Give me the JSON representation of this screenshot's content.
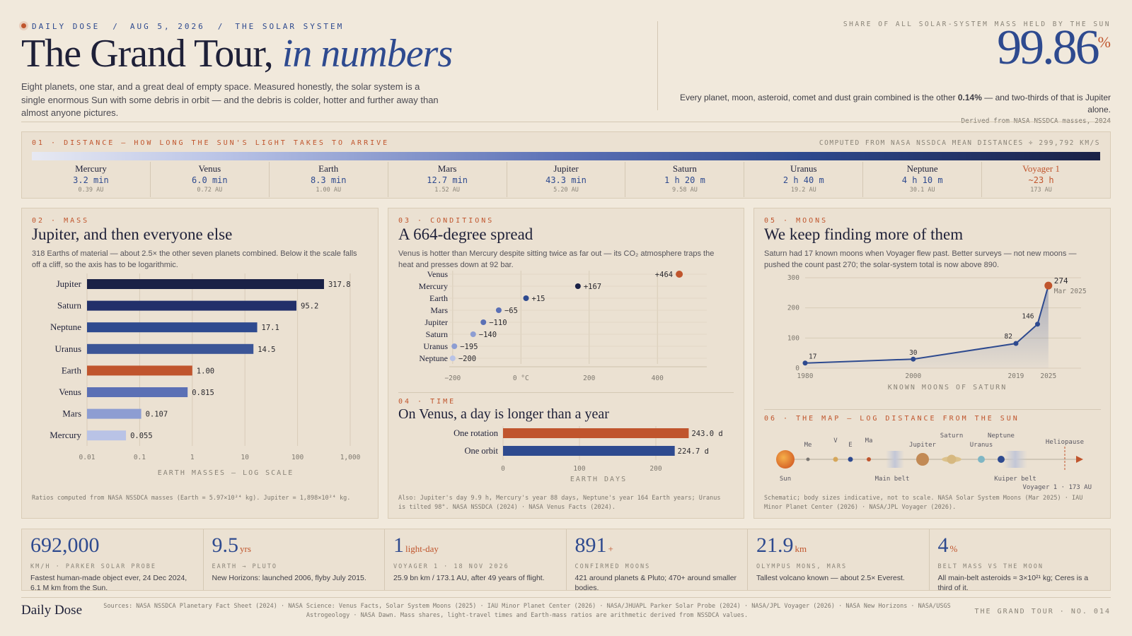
{
  "header": {
    "eyebrow": {
      "brand": "DAILY DOSE",
      "date": "AUG 5, 2026",
      "topic": "THE SOLAR SYSTEM",
      "sep": "/"
    },
    "title_main": "The Grand Tour,",
    "title_em": "in numbers",
    "lede": "Eight planets, one star, and a great deal of empty space. Measured honestly, the solar system is a single enormous Sun with some debris in orbit — and the debris is colder, hotter and further away than almost anyone pictures.",
    "stat_label": "SHARE OF ALL SOLAR-SYSTEM MASS HELD BY THE SUN",
    "stat_value": "99.86",
    "stat_unit": "%",
    "stat_text_pre": "Every planet, moon, asteroid, comet and dust grain combined is the other ",
    "stat_text_bold": "0.14%",
    "stat_text_post": " — and two-thirds of that is Jupiter alone.",
    "stat_source": "Derived from NASA NSSDCA masses, 2024"
  },
  "distance": {
    "kicker": "01 · DISTANCE — HOW LONG THE SUN'S LIGHT TAKES TO ARRIVE",
    "source": "COMPUTED FROM NASA NSSDCA MEAN DISTANCES ÷ 299,792 KM/S",
    "items": [
      {
        "name": "Mercury",
        "time": "3.2 min",
        "au": "0.39 AU"
      },
      {
        "name": "Venus",
        "time": "6.0 min",
        "au": "0.72 AU"
      },
      {
        "name": "Earth",
        "time": "8.3 min",
        "au": "1.00 AU"
      },
      {
        "name": "Mars",
        "time": "12.7 min",
        "au": "1.52 AU"
      },
      {
        "name": "Jupiter",
        "time": "43.3 min",
        "au": "5.20 AU"
      },
      {
        "name": "Saturn",
        "time": "1 h 20 m",
        "au": "9.58 AU"
      },
      {
        "name": "Uranus",
        "time": "2 h 40 m",
        "au": "19.2 AU"
      },
      {
        "name": "Neptune",
        "time": "4 h 10 m",
        "au": "30.1 AU"
      },
      {
        "name": "Voyager 1",
        "time": "~23 h",
        "au": "173 AU"
      }
    ]
  },
  "mass": {
    "kicker": "02 · MASS",
    "title": "Jupiter, and then everyone else",
    "desc": "318 Earths of material — about 2.5× the other seven planets combined. Below it the scale falls off a cliff, so the axis has to be logarithmic.",
    "note": "Ratios computed from NASA NSSDCA masses (Earth = 5.97×10²⁴ kg). Jupiter = 1,898×10²⁴ kg."
  },
  "conditions": {
    "kicker": "03 · CONDITIONS",
    "title": "A 664-degree spread",
    "desc": "Venus is hotter than Mercury despite sitting twice as far out — its CO₂ atmosphere traps the heat and presses down at 92 bar."
  },
  "time": {
    "kicker": "04 · TIME",
    "title": "On Venus, a day is longer than a year",
    "note": "Also: Jupiter's day 9.9 h, Mercury's year 88 days, Neptune's year 164 Earth years; Uranus is tilted 98°. NASA NSSDCA (2024) · NASA Venus Facts (2024)."
  },
  "moons": {
    "kicker": "05 · MOONS",
    "title": "We keep finding more of them",
    "desc": "Saturn had 17 known moons when Voyager flew past. Better surveys — not new moons — pushed the count past 270; the solar-system total is now above 890."
  },
  "map": {
    "kicker": "06 · THE MAP — LOG DISTANCE FROM THE SUN",
    "labels": {
      "me": "Me",
      "v": "V",
      "e": "E",
      "ma": "Ma",
      "jupiter": "Jupiter",
      "saturn": "Saturn",
      "uranus": "Uranus",
      "neptune": "Neptune",
      "heliopause": "Heliopause",
      "sun": "Sun",
      "main_belt": "Main belt",
      "kuiper_belt": "Kuiper belt",
      "voyager": "Voyager 1 · 173 AU"
    },
    "note": "Schematic; body sizes indicative, not to scale. NASA Solar System Moons (Mar 2025) · IAU Minor Planet Center (2026) · NASA/JPL Voyager (2026)."
  },
  "stats": [
    {
      "value": "692,000",
      "unit": "",
      "label": "KM/H · PARKER SOLAR PROBE",
      "text": "Fastest human-made object ever, 24 Dec 2024, 6.1 M km from the Sun."
    },
    {
      "value": "9.5",
      "unit": "yrs",
      "label": "EARTH → PLUTO",
      "text": "New Horizons: launched 2006, flyby July 2015."
    },
    {
      "value": "1",
      "unit": "light-day",
      "label": "VOYAGER 1 · 18 NOV 2026",
      "text": "25.9 bn km / 173.1 AU, after 49 years of flight."
    },
    {
      "value": "891",
      "unit": "+",
      "label": "CONFIRMED MOONS",
      "text": "421 around planets & Pluto; 470+ around smaller bodies."
    },
    {
      "value": "21.9",
      "unit": "km",
      "label": "OLYMPUS MONS, MARS",
      "text": "Tallest volcano known — about 2.5× Everest."
    },
    {
      "value": "4",
      "unit": "%",
      "label": "BELT MASS VS THE MOON",
      "text": "All main-belt asteroids ≈ 3×10²¹ kg; Ceres is a third of it."
    }
  ],
  "footer": {
    "brand": "Daily Dose",
    "sources": "Sources: NASA NSSDCA Planetary Fact Sheet (2024) · NASA Science: Venus Facts, Solar System Moons (2025) · IAU Minor Planet Center (2026) · NASA/JHUAPL Parker Solar Probe (2024) · NASA/JPL Voyager (2026) · NASA New Horizons · NASA/USGS Astrogeology · NASA Dawn. Mass shares, light-travel times and Earth-mass ratios are arithmetic derived from NSSDCA values.",
    "issue": "THE GRAND TOUR · NO. 014"
  },
  "colors": {
    "navy": "#1a2146",
    "blue": "#2e4a8f",
    "orange": "#c0552d",
    "mid": "#5b70b5",
    "light": "#b9c3e6"
  },
  "chart_data": [
    {
      "type": "bar",
      "title": "Jupiter, and then everyone else",
      "xlabel": "EARTH MASSES — LOG SCALE",
      "scale": "log",
      "xlim": [
        0.01,
        1000
      ],
      "ticks": [
        "0.01",
        "0.1",
        "1",
        "10",
        "100",
        "1,000"
      ],
      "categories": [
        "Jupiter",
        "Saturn",
        "Neptune",
        "Uranus",
        "Earth",
        "Venus",
        "Mars",
        "Mercury"
      ],
      "values": [
        317.8,
        95.2,
        17.1,
        14.5,
        1.0,
        0.815,
        0.107,
        0.055
      ],
      "labels": [
        "317.8",
        "95.2",
        "17.1",
        "14.5",
        "1.00",
        "0.815",
        "0.107",
        "0.055"
      ],
      "bar_colors": [
        "#1a2146",
        "#22306a",
        "#2e4a8f",
        "#3b5597",
        "#c0552d",
        "#5b70b5",
        "#8d9dd2",
        "#b9c3e6"
      ]
    },
    {
      "type": "scatter",
      "title": "A 664-degree spread",
      "xlabel": "°C",
      "xlim": [
        -200,
        464
      ],
      "ticks": [
        "−200",
        "0 °C",
        "200",
        "400"
      ],
      "tick_values": [
        -200,
        0,
        200,
        400
      ],
      "categories": [
        "Venus",
        "Mercury",
        "Earth",
        "Mars",
        "Jupiter",
        "Saturn",
        "Uranus",
        "Neptune"
      ],
      "values": [
        464,
        167,
        15,
        -65,
        -110,
        -140,
        -195,
        -200
      ],
      "labels": [
        "+464",
        "+167",
        "+15",
        "−65",
        "−110",
        "−140",
        "−195",
        "−200"
      ]
    },
    {
      "type": "bar",
      "title": "On Venus, a day is longer than a year",
      "xlabel": "EARTH DAYS",
      "xlim": [
        0,
        250
      ],
      "ticks": [
        "0",
        "100",
        "200"
      ],
      "tick_values": [
        0,
        100,
        200
      ],
      "categories": [
        "One rotation",
        "One orbit"
      ],
      "values": [
        243.0,
        224.7
      ],
      "labels": [
        "243.0 d",
        "224.7 d"
      ]
    },
    {
      "type": "line",
      "title": "We keep finding more of them",
      "xlabel": "KNOWN MOONS OF SATURN",
      "ylim": [
        0,
        300
      ],
      "yticks": [
        0,
        100,
        200,
        300
      ],
      "xticks": [
        "1980",
        "2000",
        "2019",
        "2025"
      ],
      "x": [
        1980,
        2000,
        2019,
        2023,
        2025
      ],
      "y": [
        17,
        30,
        82,
        146,
        274
      ],
      "labels": [
        "17",
        "30",
        "82",
        "146",
        "274"
      ],
      "annotation": "Mar 2025"
    }
  ]
}
